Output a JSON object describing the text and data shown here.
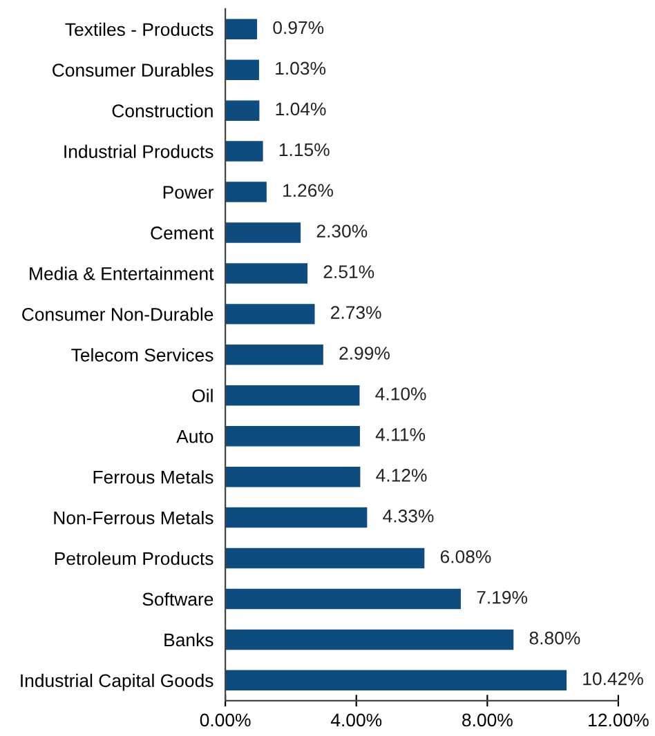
{
  "chart_data": {
    "type": "bar",
    "orientation": "horizontal",
    "categories": [
      "Textiles - Products",
      "Consumer Durables",
      "Construction",
      "Industrial Products",
      "Power",
      "Cement",
      "Media & Entertainment",
      "Consumer Non-Durable",
      "Telecom Services",
      "Oil",
      "Auto",
      "Ferrous Metals",
      "Non-Ferrous Metals",
      "Petroleum Products",
      "Software",
      "Banks",
      "Industrial Capital Goods"
    ],
    "values": [
      0.97,
      1.03,
      1.04,
      1.15,
      1.26,
      2.3,
      2.51,
      2.73,
      2.99,
      4.1,
      4.11,
      4.12,
      4.33,
      6.08,
      7.19,
      8.8,
      10.42
    ],
    "value_labels": [
      "0.97%",
      "1.03%",
      "1.04%",
      "1.15%",
      "1.26%",
      "2.30%",
      "2.51%",
      "2.73%",
      "2.99%",
      "4.10%",
      "4.11%",
      "4.12%",
      "4.33%",
      "6.08%",
      "7.19%",
      "8.80%",
      "10.42%"
    ],
    "color": "#0e4c80",
    "xlim": [
      0,
      12
    ],
    "xticks": [
      {
        "value": 0,
        "label": "0.00%"
      },
      {
        "value": 4,
        "label": "4.00%"
      },
      {
        "value": 8,
        "label": "8.00%"
      },
      {
        "value": 12,
        "label": "12.00%"
      }
    ],
    "grid": false,
    "legend": false
  }
}
